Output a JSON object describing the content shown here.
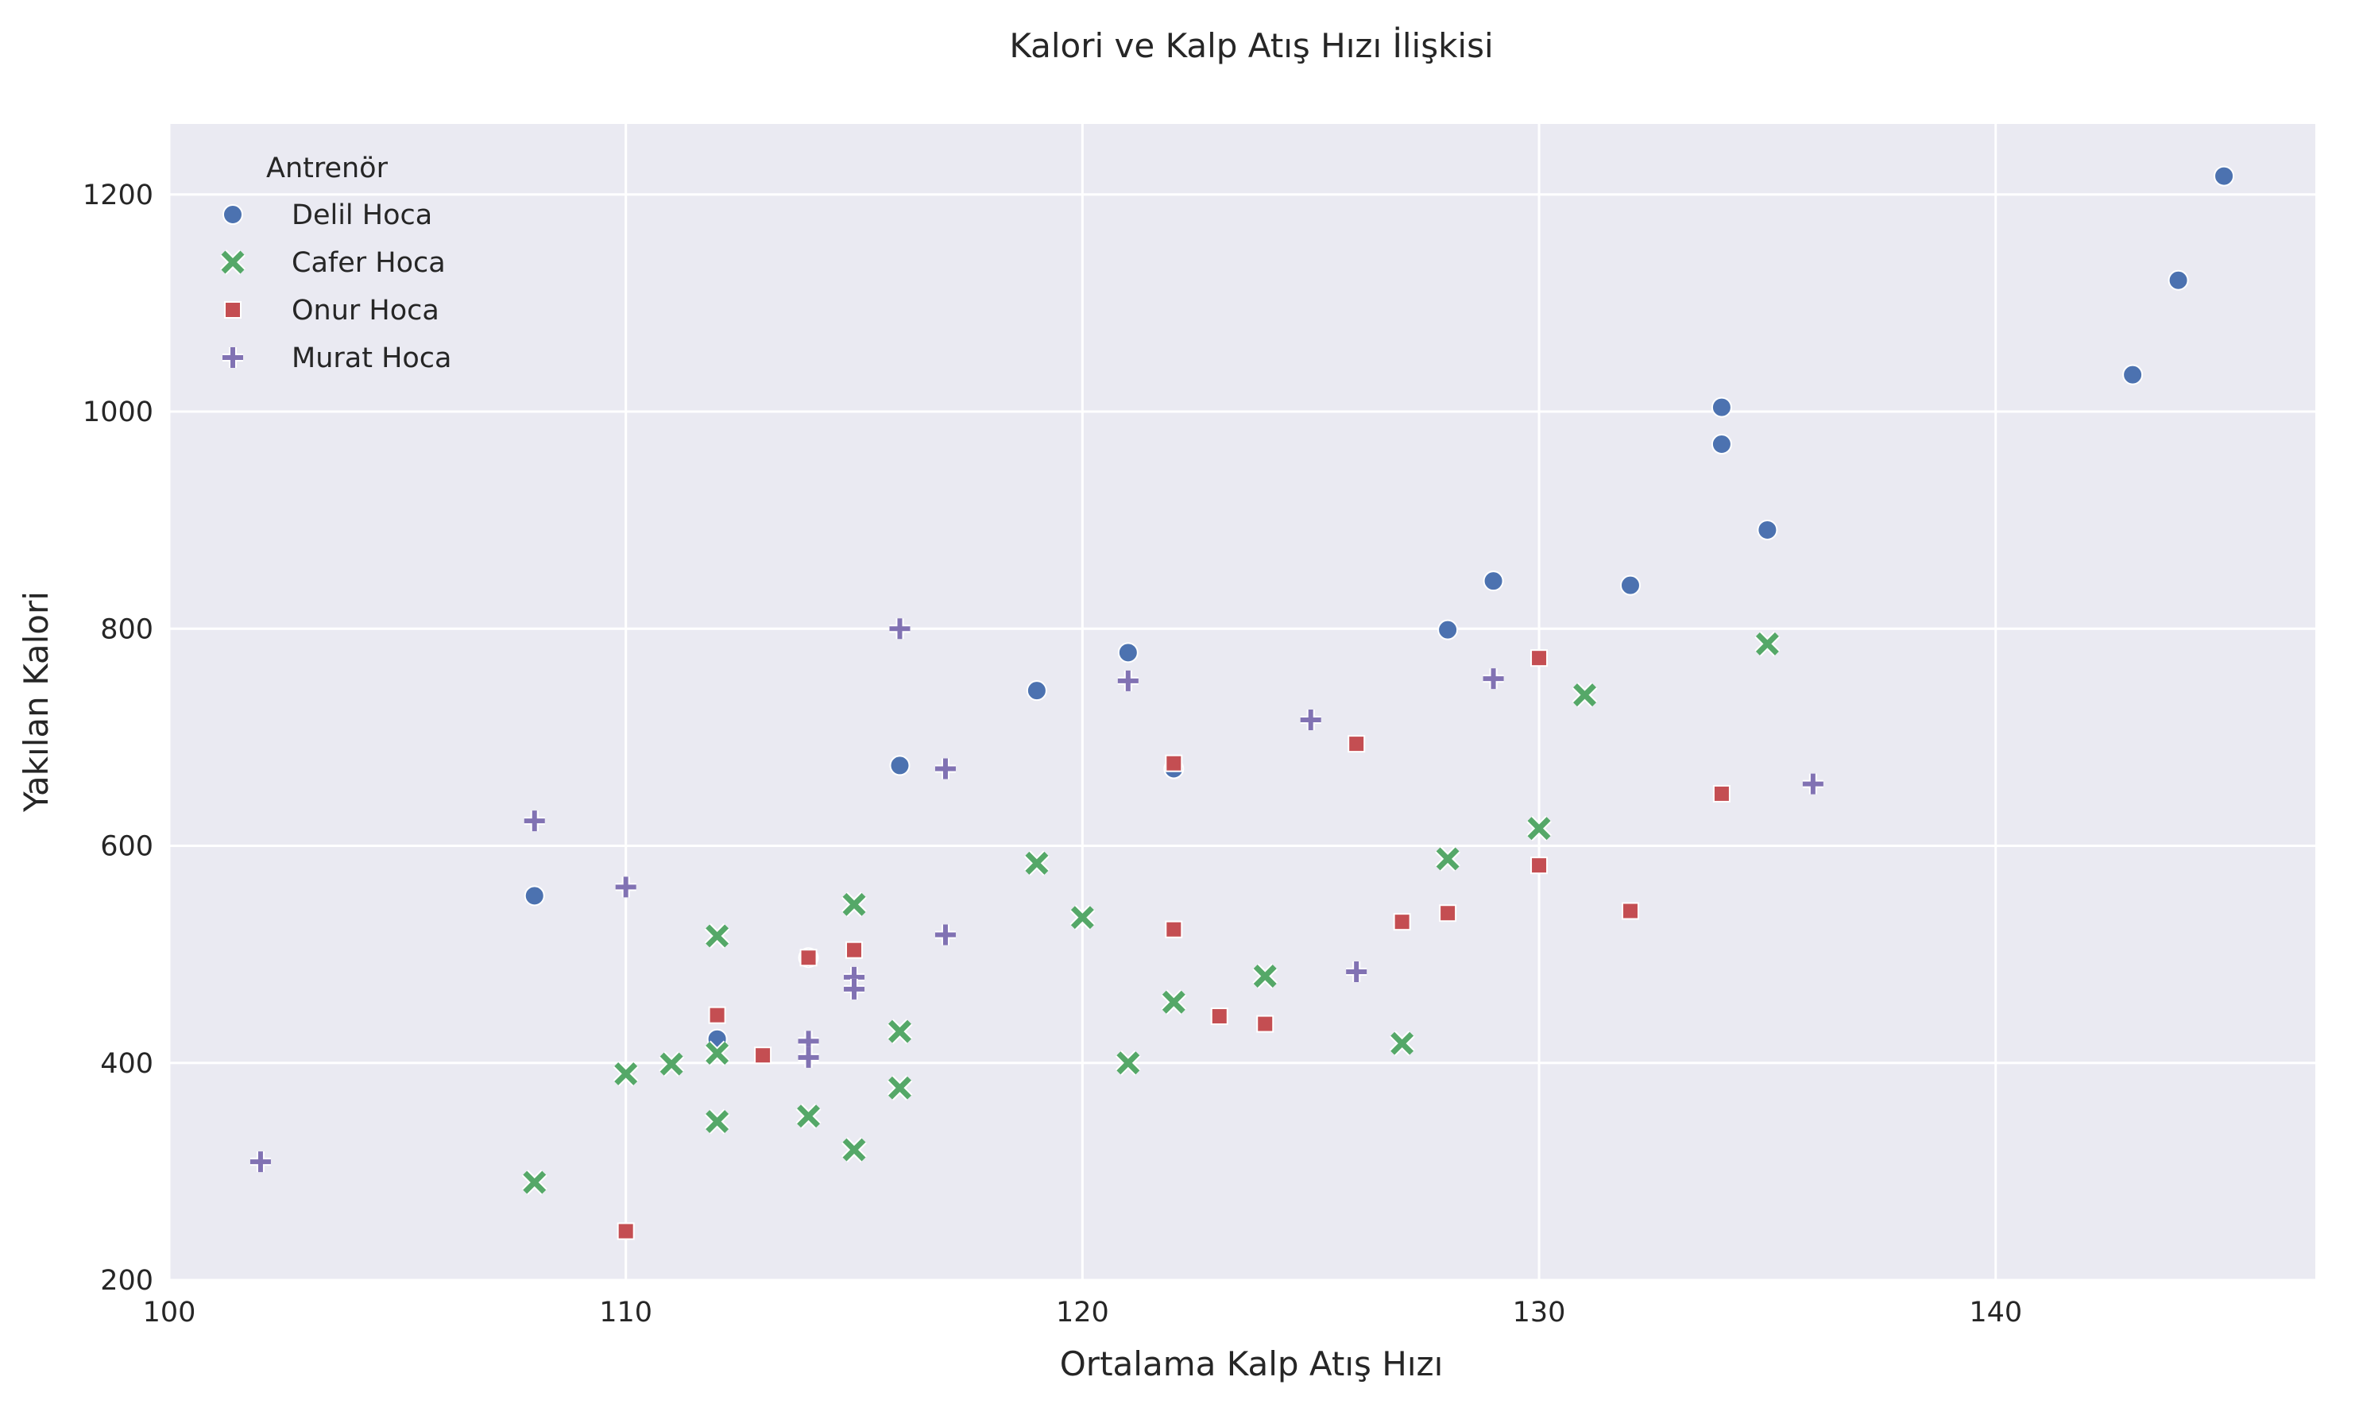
{
  "chart_data": {
    "type": "scatter",
    "title": "Kalori ve Kalp Atış Hızı İlişkisi",
    "xlabel": "Ortalama Kalp Atış Hızı",
    "ylabel": "Yakılan Kalori",
    "xlim": [
      100,
      147
    ],
    "ylim": [
      200,
      1265
    ],
    "x_ticks": [
      "100",
      "110",
      "120",
      "130",
      "140"
    ],
    "y_ticks": [
      "200",
      "400",
      "600",
      "800",
      "1000",
      "1200"
    ],
    "grid": true,
    "legend": {
      "title": "Antrenör",
      "position": "top-left"
    },
    "series": [
      {
        "name": "Delil Hoca",
        "marker": "circle",
        "color": "#4c72b0",
        "points": [
          [
            108,
            554
          ],
          [
            112,
            422
          ],
          [
            114,
            497
          ],
          [
            116,
            674
          ],
          [
            119,
            743
          ],
          [
            121,
            778
          ],
          [
            122,
            671
          ],
          [
            128,
            799
          ],
          [
            129,
            844
          ],
          [
            132,
            840
          ],
          [
            134,
            1004
          ],
          [
            134,
            970
          ],
          [
            135,
            891
          ],
          [
            143,
            1034
          ],
          [
            144,
            1121
          ],
          [
            145,
            1217
          ]
        ]
      },
      {
        "name": "Cafer Hoca",
        "marker": "x",
        "color": "#55a868",
        "points": [
          [
            108,
            290
          ],
          [
            110,
            390
          ],
          [
            111,
            399
          ],
          [
            112,
            517
          ],
          [
            112,
            409
          ],
          [
            112,
            346
          ],
          [
            114,
            351
          ],
          [
            115,
            546
          ],
          [
            115,
            320
          ],
          [
            116,
            429
          ],
          [
            116,
            377
          ],
          [
            119,
            584
          ],
          [
            120,
            534
          ],
          [
            121,
            400
          ],
          [
            122,
            456
          ],
          [
            124,
            480
          ],
          [
            127,
            418
          ],
          [
            128,
            588
          ],
          [
            130,
            616
          ],
          [
            131,
            739
          ],
          [
            135,
            786
          ]
        ]
      },
      {
        "name": "Onur Hoca",
        "marker": "square",
        "color": "#c44e52",
        "points": [
          [
            110,
            245
          ],
          [
            112,
            444
          ],
          [
            113,
            407
          ],
          [
            114,
            497
          ],
          [
            115,
            504
          ],
          [
            122,
            676
          ],
          [
            122,
            523
          ],
          [
            123,
            443
          ],
          [
            124,
            436
          ],
          [
            126,
            694
          ],
          [
            127,
            530
          ],
          [
            128,
            538
          ],
          [
            130,
            773
          ],
          [
            130,
            582
          ],
          [
            132,
            540
          ],
          [
            134,
            648
          ]
        ]
      },
      {
        "name": "Murat Hoca",
        "marker": "plus",
        "color": "#8172b3",
        "points": [
          [
            102,
            309
          ],
          [
            108,
            623
          ],
          [
            110,
            562
          ],
          [
            114,
            420
          ],
          [
            114,
            405
          ],
          [
            115,
            479
          ],
          [
            115,
            468
          ],
          [
            116,
            800
          ],
          [
            117,
            671
          ],
          [
            117,
            518
          ],
          [
            121,
            752
          ],
          [
            125,
            716
          ],
          [
            126,
            484
          ],
          [
            129,
            754
          ],
          [
            136,
            657
          ]
        ]
      }
    ]
  }
}
